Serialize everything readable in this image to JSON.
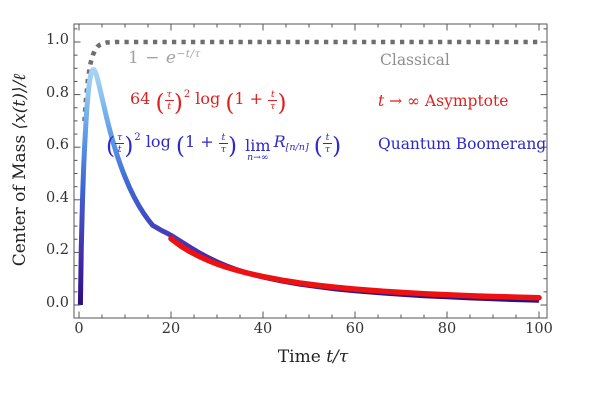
{
  "figure": {
    "background": "#ffffff"
  },
  "labels": {
    "classical": "Classical",
    "asymptote_t": "t",
    "asymptote_rest": "→ ∞ Asymptote",
    "quantum": "Quantum Boomerang"
  },
  "math": {
    "one_minus": "1 − ",
    "e": "e",
    "classical_exp": "−t/τ",
    "coef64": "64",
    "tau": "τ",
    "t": "t",
    "two": "2",
    "log": "log",
    "one_plus": "1 +",
    "lparen": "(",
    "rparen": ")",
    "lim": "lim",
    "lim_sub": "n→∞",
    "R": "R",
    "R_sub": "[n/n]"
  },
  "colors": {
    "classical_curve": "#6e6e6e",
    "asymptote_curve": "#ee1111",
    "classical_text": "#a3a3a3",
    "red_text": "#e01f1f",
    "blue_text": "#2d2ac8",
    "frame": "#555555"
  },
  "chart_data": {
    "type": "line",
    "title": "",
    "xlabel_text": "Time",
    "xlabel_math": "t/τ",
    "ylabel_text": "Center of Mass",
    "ylabel_math": "⟨x(t)⟩/ℓ",
    "xlim": [
      0,
      100
    ],
    "ylim": [
      0,
      1.0
    ],
    "x_ticks": [
      "0",
      "20",
      "40",
      "60",
      "80",
      "100"
    ],
    "y_ticks": [
      "0.0",
      "0.2",
      "0.4",
      "0.6",
      "0.8",
      "1.0"
    ],
    "x_minor_step": 5,
    "y_minor_step": 0.05,
    "grid": false,
    "legend_position": "inline-annotations",
    "series": [
      {
        "name": "Classical",
        "formula": "1 − e^(−t/τ)",
        "style": "dotted",
        "color": "#6e6e6e",
        "points": [
          [
            1.2,
            0.699
          ],
          [
            1.5,
            0.777
          ],
          [
            2,
            0.865
          ],
          [
            2.5,
            0.918
          ],
          [
            3,
            0.95
          ],
          [
            3.5,
            0.97
          ],
          [
            4,
            0.982
          ],
          [
            4.5,
            0.989
          ],
          [
            5,
            0.993
          ],
          [
            6,
            0.998
          ],
          [
            7,
            0.999
          ],
          [
            8,
            1.0
          ],
          [
            10,
            1.0
          ],
          [
            20,
            1.0
          ],
          [
            40,
            1.0
          ],
          [
            60,
            1.0
          ],
          [
            80,
            1.0
          ],
          [
            100,
            1.0
          ]
        ]
      },
      {
        "name": "Quantum Boomerang",
        "formula": "(τ/t)² log(1 + t/τ) lim_{n→∞} R_[n/n](t/τ)",
        "style": "solid-gradient-by-height",
        "color_gradient_by_y": [
          [
            "0",
            "#2a0e7e"
          ],
          [
            "0.22",
            "#452fae"
          ],
          [
            "0.5",
            "#3f66d4"
          ],
          [
            "0.72",
            "#5f9ce8"
          ],
          [
            "0.89",
            "#8ec4f0"
          ],
          [
            "1",
            "#a9d5f4"
          ]
        ],
        "points": [
          [
            0.3,
            0
          ],
          [
            0.5,
            0.22
          ],
          [
            0.75,
            0.4
          ],
          [
            1,
            0.52
          ],
          [
            1.25,
            0.615
          ],
          [
            1.5,
            0.69
          ],
          [
            1.75,
            0.755
          ],
          [
            2,
            0.805
          ],
          [
            2.25,
            0.845
          ],
          [
            2.5,
            0.87
          ],
          [
            2.75,
            0.888
          ],
          [
            3,
            0.895
          ],
          [
            3.25,
            0.895
          ],
          [
            3.5,
            0.888
          ],
          [
            3.75,
            0.876
          ],
          [
            4,
            0.862
          ],
          [
            4.5,
            0.826
          ],
          [
            5,
            0.788
          ],
          [
            5.5,
            0.75
          ],
          [
            6,
            0.713
          ],
          [
            6.5,
            0.678
          ],
          [
            7,
            0.645
          ],
          [
            7.5,
            0.614
          ],
          [
            8,
            0.585
          ],
          [
            8.5,
            0.558
          ],
          [
            9,
            0.533
          ],
          [
            9.5,
            0.509
          ],
          [
            10,
            0.487
          ],
          [
            11,
            0.446
          ],
          [
            12,
            0.41
          ],
          [
            13,
            0.378
          ],
          [
            14,
            0.35
          ],
          [
            15,
            0.325
          ],
          [
            16,
            0.303
          ],
          [
            17,
            0.293
          ],
          [
            18,
            0.283
          ],
          [
            19,
            0.274
          ],
          [
            20,
            0.265
          ],
          [
            22,
            0.243
          ],
          [
            24,
            0.221
          ],
          [
            26,
            0.2
          ],
          [
            28,
            0.181
          ],
          [
            30,
            0.164
          ],
          [
            32,
            0.149
          ],
          [
            34,
            0.136
          ],
          [
            36,
            0.125
          ],
          [
            38,
            0.115
          ],
          [
            40,
            0.106
          ],
          [
            44,
            0.0915
          ],
          [
            48,
            0.0795
          ],
          [
            52,
            0.0695
          ],
          [
            56,
            0.061
          ],
          [
            60,
            0.054
          ],
          [
            65,
            0.047
          ],
          [
            70,
            0.0405
          ],
          [
            75,
            0.0355
          ],
          [
            80,
            0.031
          ],
          [
            85,
            0.027
          ],
          [
            90,
            0.0235
          ],
          [
            95,
            0.0205
          ],
          [
            100,
            0.018
          ]
        ]
      },
      {
        "name": "t → ∞ Asymptote",
        "formula": "64 (τ/t)² log(1 + t/τ)",
        "style": "solid",
        "color": "#ee1111",
        "points": [
          [
            20,
            0.252
          ],
          [
            22,
            0.226
          ],
          [
            24,
            0.204
          ],
          [
            26,
            0.186
          ],
          [
            28,
            0.17
          ],
          [
            30,
            0.156
          ],
          [
            32,
            0.144
          ],
          [
            34,
            0.1335
          ],
          [
            36,
            0.124
          ],
          [
            38,
            0.116
          ],
          [
            40,
            0.108
          ],
          [
            44,
            0.0945
          ],
          [
            48,
            0.0835
          ],
          [
            52,
            0.0745
          ],
          [
            56,
            0.067
          ],
          [
            60,
            0.0605
          ],
          [
            65,
            0.0535
          ],
          [
            70,
            0.0478
          ],
          [
            75,
            0.043
          ],
          [
            80,
            0.039
          ],
          [
            85,
            0.0355
          ],
          [
            90,
            0.0325
          ],
          [
            95,
            0.03
          ],
          [
            100,
            0.0275
          ]
        ]
      }
    ]
  }
}
